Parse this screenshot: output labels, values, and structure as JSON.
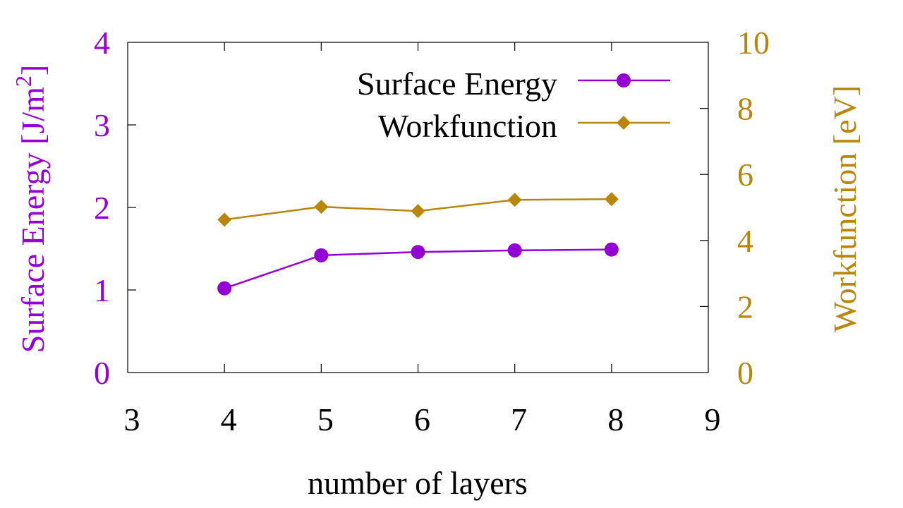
{
  "colors": {
    "surface_energy": "#9400d3",
    "workfunction": "#b8860b",
    "axis": "#000000"
  },
  "chart_data": {
    "type": "line",
    "xlabel": "number of layers",
    "ylabel_left": {
      "main": "Surface Energy [J/m",
      "superscript": "2",
      "close": "]"
    },
    "ylabel_right": "Workfunction [eV]",
    "xlim": [
      3,
      9
    ],
    "ylim_left": [
      0,
      4
    ],
    "ylim_right": [
      0,
      10
    ],
    "x_ticks": [
      "3",
      "4",
      "5",
      "6",
      "7",
      "8",
      "9"
    ],
    "y_left_ticks": [
      "0",
      "1",
      "2",
      "3",
      "4"
    ],
    "y_right_ticks": [
      "0",
      "2",
      "4",
      "6",
      "8",
      "10"
    ],
    "legend_position": "top-right",
    "series": [
      {
        "name": "Surface Energy",
        "axis": "left",
        "marker": "circle",
        "x": [
          4,
          5,
          6,
          7,
          8
        ],
        "y": [
          1.02,
          1.42,
          1.46,
          1.48,
          1.49
        ]
      },
      {
        "name": "Workfunction",
        "axis": "right",
        "marker": "diamond",
        "x": [
          4,
          5,
          6,
          7,
          8
        ],
        "y": [
          4.63,
          5.02,
          4.89,
          5.23,
          5.25
        ]
      }
    ]
  }
}
